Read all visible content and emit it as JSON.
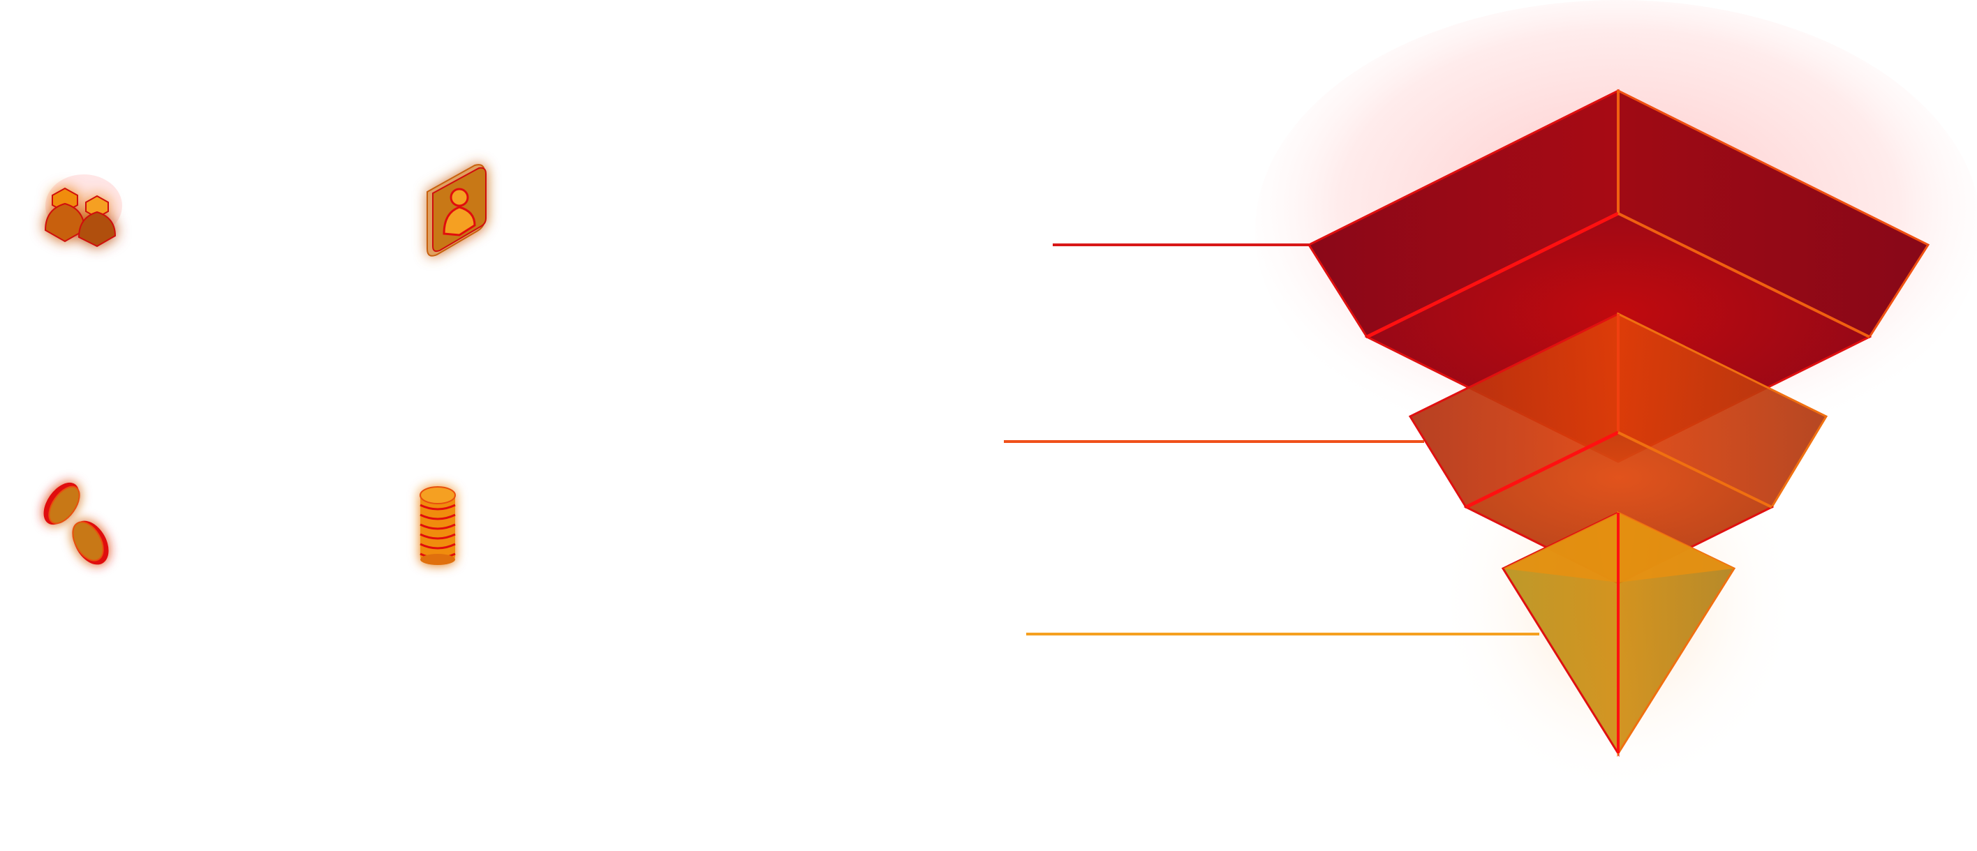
{
  "colors": {
    "background": "#ffffff",
    "accent_red": "#e01010",
    "tier1_fill": "#a00818",
    "tier2_fill": "#d84a10",
    "tier3_fill": "#d89010",
    "icon_fill": "#f08c10",
    "icon_shadow": "#c86010",
    "leader_tier1": "#d81818",
    "leader_tier2": "#f0501a",
    "leader_tier3": "#f5a020"
  },
  "icons": [
    {
      "name": "users-group-icon"
    },
    {
      "name": "user-profile-card-icon"
    },
    {
      "name": "coins-icon"
    },
    {
      "name": "coin-stack-icon"
    }
  ],
  "funnel": {
    "tiers": [
      {
        "name": "funnel-tier-top",
        "color": "#a00818"
      },
      {
        "name": "funnel-tier-middle",
        "color": "#d84a10"
      },
      {
        "name": "funnel-tier-bottom",
        "color": "#d89010"
      }
    ]
  }
}
